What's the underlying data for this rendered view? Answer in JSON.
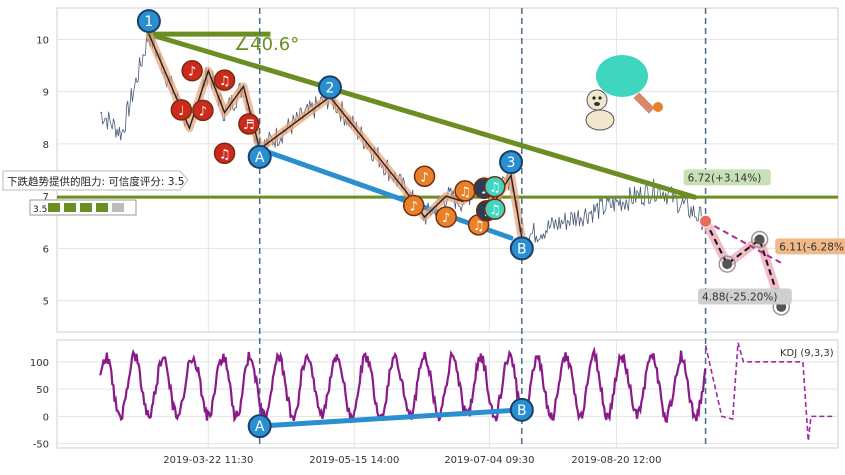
{
  "chart_data": [
    {
      "type": "line",
      "panel": "price",
      "ylim": [
        4.4,
        10.6
      ],
      "yticks": [
        5,
        6,
        7,
        8,
        9,
        10
      ],
      "grid": true,
      "price_line_color": "#4a5a78",
      "horizontal_resistance": {
        "y": 6.98,
        "color": "#6b8e23"
      },
      "trendlines": [
        {
          "name": "down-resistance",
          "from": {
            "x": "2019-02-28",
            "y": 10.1
          },
          "to": {
            "x": "2019-09-18",
            "y": 6.98
          },
          "color": "#6b8e23"
        },
        {
          "name": "support-A-B",
          "from": {
            "x": "2019-04-10",
            "y": 7.9
          },
          "to": {
            "x": "2019-07-12",
            "y": 6.2
          },
          "color": "#2a8fd0"
        }
      ],
      "angle_label": "∠40.6°",
      "zigzag": [
        {
          "x": "2019-02-28",
          "y": 10.1
        },
        {
          "x": "2019-03-15",
          "y": 8.3
        },
        {
          "x": "2019-03-22",
          "y": 9.4
        },
        {
          "x": "2019-03-28",
          "y": 8.6
        },
        {
          "x": "2019-04-04",
          "y": 9.1
        },
        {
          "x": "2019-04-10",
          "y": 7.9
        },
        {
          "x": "2019-05-06",
          "y": 8.9
        },
        {
          "x": "2019-06-03",
          "y": 7.1
        },
        {
          "x": "2019-06-10",
          "y": 6.6
        },
        {
          "x": "2019-06-18",
          "y": 7.0
        },
        {
          "x": "2019-06-24",
          "y": 6.9
        },
        {
          "x": "2019-07-02",
          "y": 7.3
        },
        {
          "x": "2019-07-06",
          "y": 6.9
        },
        {
          "x": "2019-07-12",
          "y": 7.4
        },
        {
          "x": "2019-07-16",
          "y": 6.2
        }
      ],
      "markers": [
        {
          "label": "1",
          "x": "2019-02-28",
          "y": 10.35,
          "style": "blue"
        },
        {
          "label": "2",
          "x": "2019-05-06",
          "y": 9.08,
          "style": "blue"
        },
        {
          "label": "3",
          "x": "2019-07-12",
          "y": 7.65,
          "style": "blue"
        },
        {
          "label": "A",
          "x": "2019-04-10",
          "y": 7.75,
          "style": "blue"
        },
        {
          "label": "B",
          "x": "2019-07-16",
          "y": 6.0,
          "style": "blue"
        }
      ],
      "notes": [
        {
          "x": "2019-03-12",
          "y": 8.65,
          "color": "#cc2a1a",
          "glyph": "♩"
        },
        {
          "x": "2019-03-16",
          "y": 9.4,
          "color": "#cc2a1a",
          "glyph": "♪"
        },
        {
          "x": "2019-03-20",
          "y": 8.64,
          "color": "#cc2a1a",
          "glyph": "♪"
        },
        {
          "x": "2019-03-28",
          "y": 9.22,
          "color": "#cc2a1a",
          "glyph": "♫"
        },
        {
          "x": "2019-04-06",
          "y": 8.38,
          "color": "#cc2a1a",
          "glyph": "♬"
        },
        {
          "x": "2019-03-28",
          "y": 7.82,
          "color": "#cc2a1a",
          "glyph": "♫"
        },
        {
          "x": "2019-06-10",
          "y": 7.38,
          "color": "#e8822a",
          "glyph": "♪"
        },
        {
          "x": "2019-06-06",
          "y": 6.82,
          "color": "#e8822a",
          "glyph": "♪"
        },
        {
          "x": "2019-06-18",
          "y": 6.6,
          "color": "#e8822a",
          "glyph": "♪"
        },
        {
          "x": "2019-06-25",
          "y": 7.1,
          "color": "#e8822a",
          "glyph": "♫"
        },
        {
          "x": "2019-06-30",
          "y": 6.45,
          "color": "#e8822a",
          "glyph": "♫"
        },
        {
          "x": "2019-07-02",
          "y": 7.15,
          "color": "#2a3f55",
          "glyph": "♩"
        },
        {
          "x": "2019-07-03",
          "y": 6.72,
          "color": "#2a3f55",
          "glyph": "♩"
        },
        {
          "x": "2019-07-06",
          "y": 7.18,
          "color": "#3fd6c0",
          "glyph": "♫"
        },
        {
          "x": "2019-07-06",
          "y": 6.75,
          "color": "#3fd6c0",
          "glyph": "♫"
        }
      ],
      "forecast": {
        "start": {
          "x": "2019-09-22",
          "y": 6.52
        },
        "pink_path": [
          {
            "x": "2019-09-22",
            "y": 6.52
          },
          {
            "x": "2019-09-30",
            "y": 5.7
          },
          {
            "x": "2019-10-12",
            "y": 6.17
          },
          {
            "x": "2019-10-20",
            "y": 4.88
          }
        ],
        "upper_path": [
          {
            "x": "2019-09-22",
            "y": 6.52
          },
          {
            "x": "2019-10-20",
            "y": 5.72
          }
        ],
        "targets": [
          {
            "label": "6.72(+3.14%)",
            "x": "2019-09-22",
            "y": 7.32,
            "color": "#c8e0b8"
          },
          {
            "label": "6.11(-6.28%)",
            "x": "2019-10-20",
            "y": 6.0,
            "color": "#f1b98a"
          },
          {
            "label": "4.88(-25.20%)",
            "x": "2019-10-18",
            "y": 5.04,
            "color": "#cfcfcf"
          }
        ]
      },
      "vlines": [
        "2019-04-10",
        "2019-07-16",
        "2019-09-22"
      ],
      "resistance_label": "下跌趋势提供的阻力: 可信度评分: 3.5",
      "rating_value": "3.5",
      "rating_count": 5
    },
    {
      "type": "line",
      "panel": "KDJ",
      "title": "KDJ (9,3,3)",
      "ylim": [
        -58,
        140
      ],
      "yticks": [
        -50,
        0,
        50,
        100
      ],
      "series_color": "#8a1a8a",
      "trendline": {
        "from": {
          "x": "2019-04-10",
          "y": -18
        },
        "to": {
          "x": "2019-07-16",
          "y": 12
        },
        "color": "#2a8fd0"
      },
      "markers": [
        {
          "label": "A",
          "x": "2019-04-10",
          "y": -18
        },
        {
          "label": "B",
          "x": "2019-07-16",
          "y": 12
        }
      ]
    }
  ],
  "xticks": [
    "2019-03-22 11:30",
    "2019-05-15 14:00",
    "2019-07-04 09:30",
    "2019-08-20 12:00"
  ]
}
